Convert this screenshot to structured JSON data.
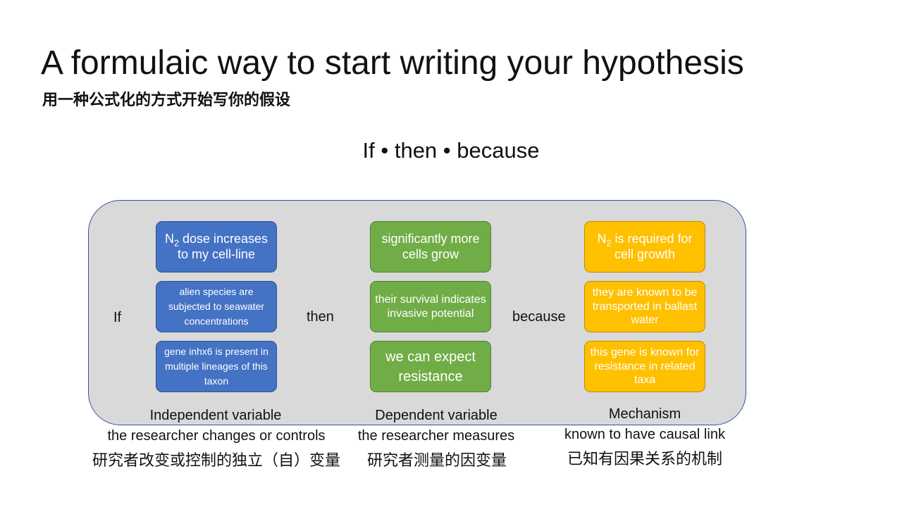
{
  "slide": {
    "title": "A formulaic way to start writing your hypothesis",
    "subtitle": "用一种公式化的方式开始写你的假设",
    "formula": "If • then • because"
  },
  "connectors": {
    "if": "If",
    "then": "then",
    "because": "because"
  },
  "columns": {
    "independent": {
      "label": "Independent variable",
      "description": "the researcher changes or controls",
      "description_zh": "研究者改变或控制的独立（自）变量",
      "color": "#4472c4",
      "boxes": [
        {
          "pre": "N",
          "sub": "2",
          "post": " dose increases to my cell-line"
        },
        {
          "text": "alien species are subjected to seawater concentrations"
        },
        {
          "text": "gene inhx6 is present in multiple lineages of this taxon"
        }
      ]
    },
    "dependent": {
      "label": "Dependent variable",
      "description": "the researcher measures",
      "description_zh": "研究者测量的因变量",
      "color": "#70ad47",
      "boxes": [
        {
          "text": "significantly more cells grow"
        },
        {
          "text": "their survival indicates invasive potential"
        },
        {
          "text": "we can expect resistance"
        }
      ]
    },
    "mechanism": {
      "label": "Mechanism",
      "description": "known to have causal link",
      "description_zh": "已知有因果关系的机制",
      "color": "#ffc000",
      "boxes": [
        {
          "pre": "N",
          "sub": "2",
          "post": " is required for cell growth"
        },
        {
          "text": "they are known to be transported in ballast water"
        },
        {
          "text": "this gene is known for resistance in related taxa"
        }
      ]
    }
  }
}
